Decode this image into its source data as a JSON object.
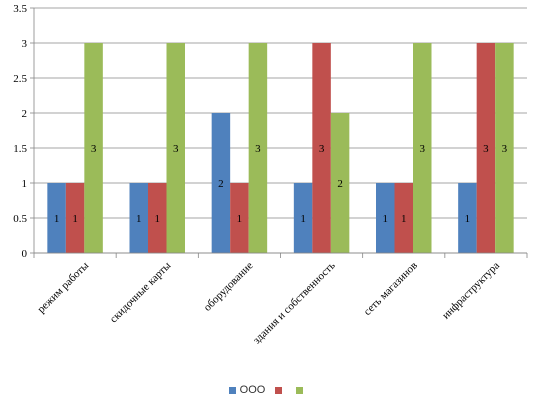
{
  "chart_data": {
    "type": "bar",
    "categories": [
      "режим работы",
      "скидочные карты",
      "оборудование",
      "здания и собственность",
      "сеть магазинов",
      "инфраструктура"
    ],
    "series": [
      {
        "name": "ООО",
        "color": "#4F81BD",
        "values": [
          1,
          1,
          2,
          1,
          1,
          1
        ]
      },
      {
        "name": "",
        "color": "#C0504D",
        "values": [
          1,
          1,
          1,
          3,
          1,
          3
        ]
      },
      {
        "name": "",
        "color": "#9BBB59",
        "values": [
          3,
          3,
          3,
          2,
          3,
          3
        ]
      }
    ],
    "data_labels": [
      [
        "1",
        "1",
        "3"
      ],
      [
        "1",
        "1",
        "3"
      ],
      [
        "2",
        "1",
        "3"
      ],
      [
        "1",
        "3",
        "2"
      ],
      [
        "1",
        "1",
        "3"
      ],
      [
        "1",
        "3",
        "3"
      ]
    ],
    "ylim": [
      0,
      3.5
    ],
    "yticks": [
      "0",
      "0.5",
      "1",
      "1.5",
      "2",
      "2.5",
      "3",
      "3.5"
    ],
    "grid": true,
    "legend": "bottom",
    "title": "",
    "xlabel": "",
    "ylabel": ""
  }
}
